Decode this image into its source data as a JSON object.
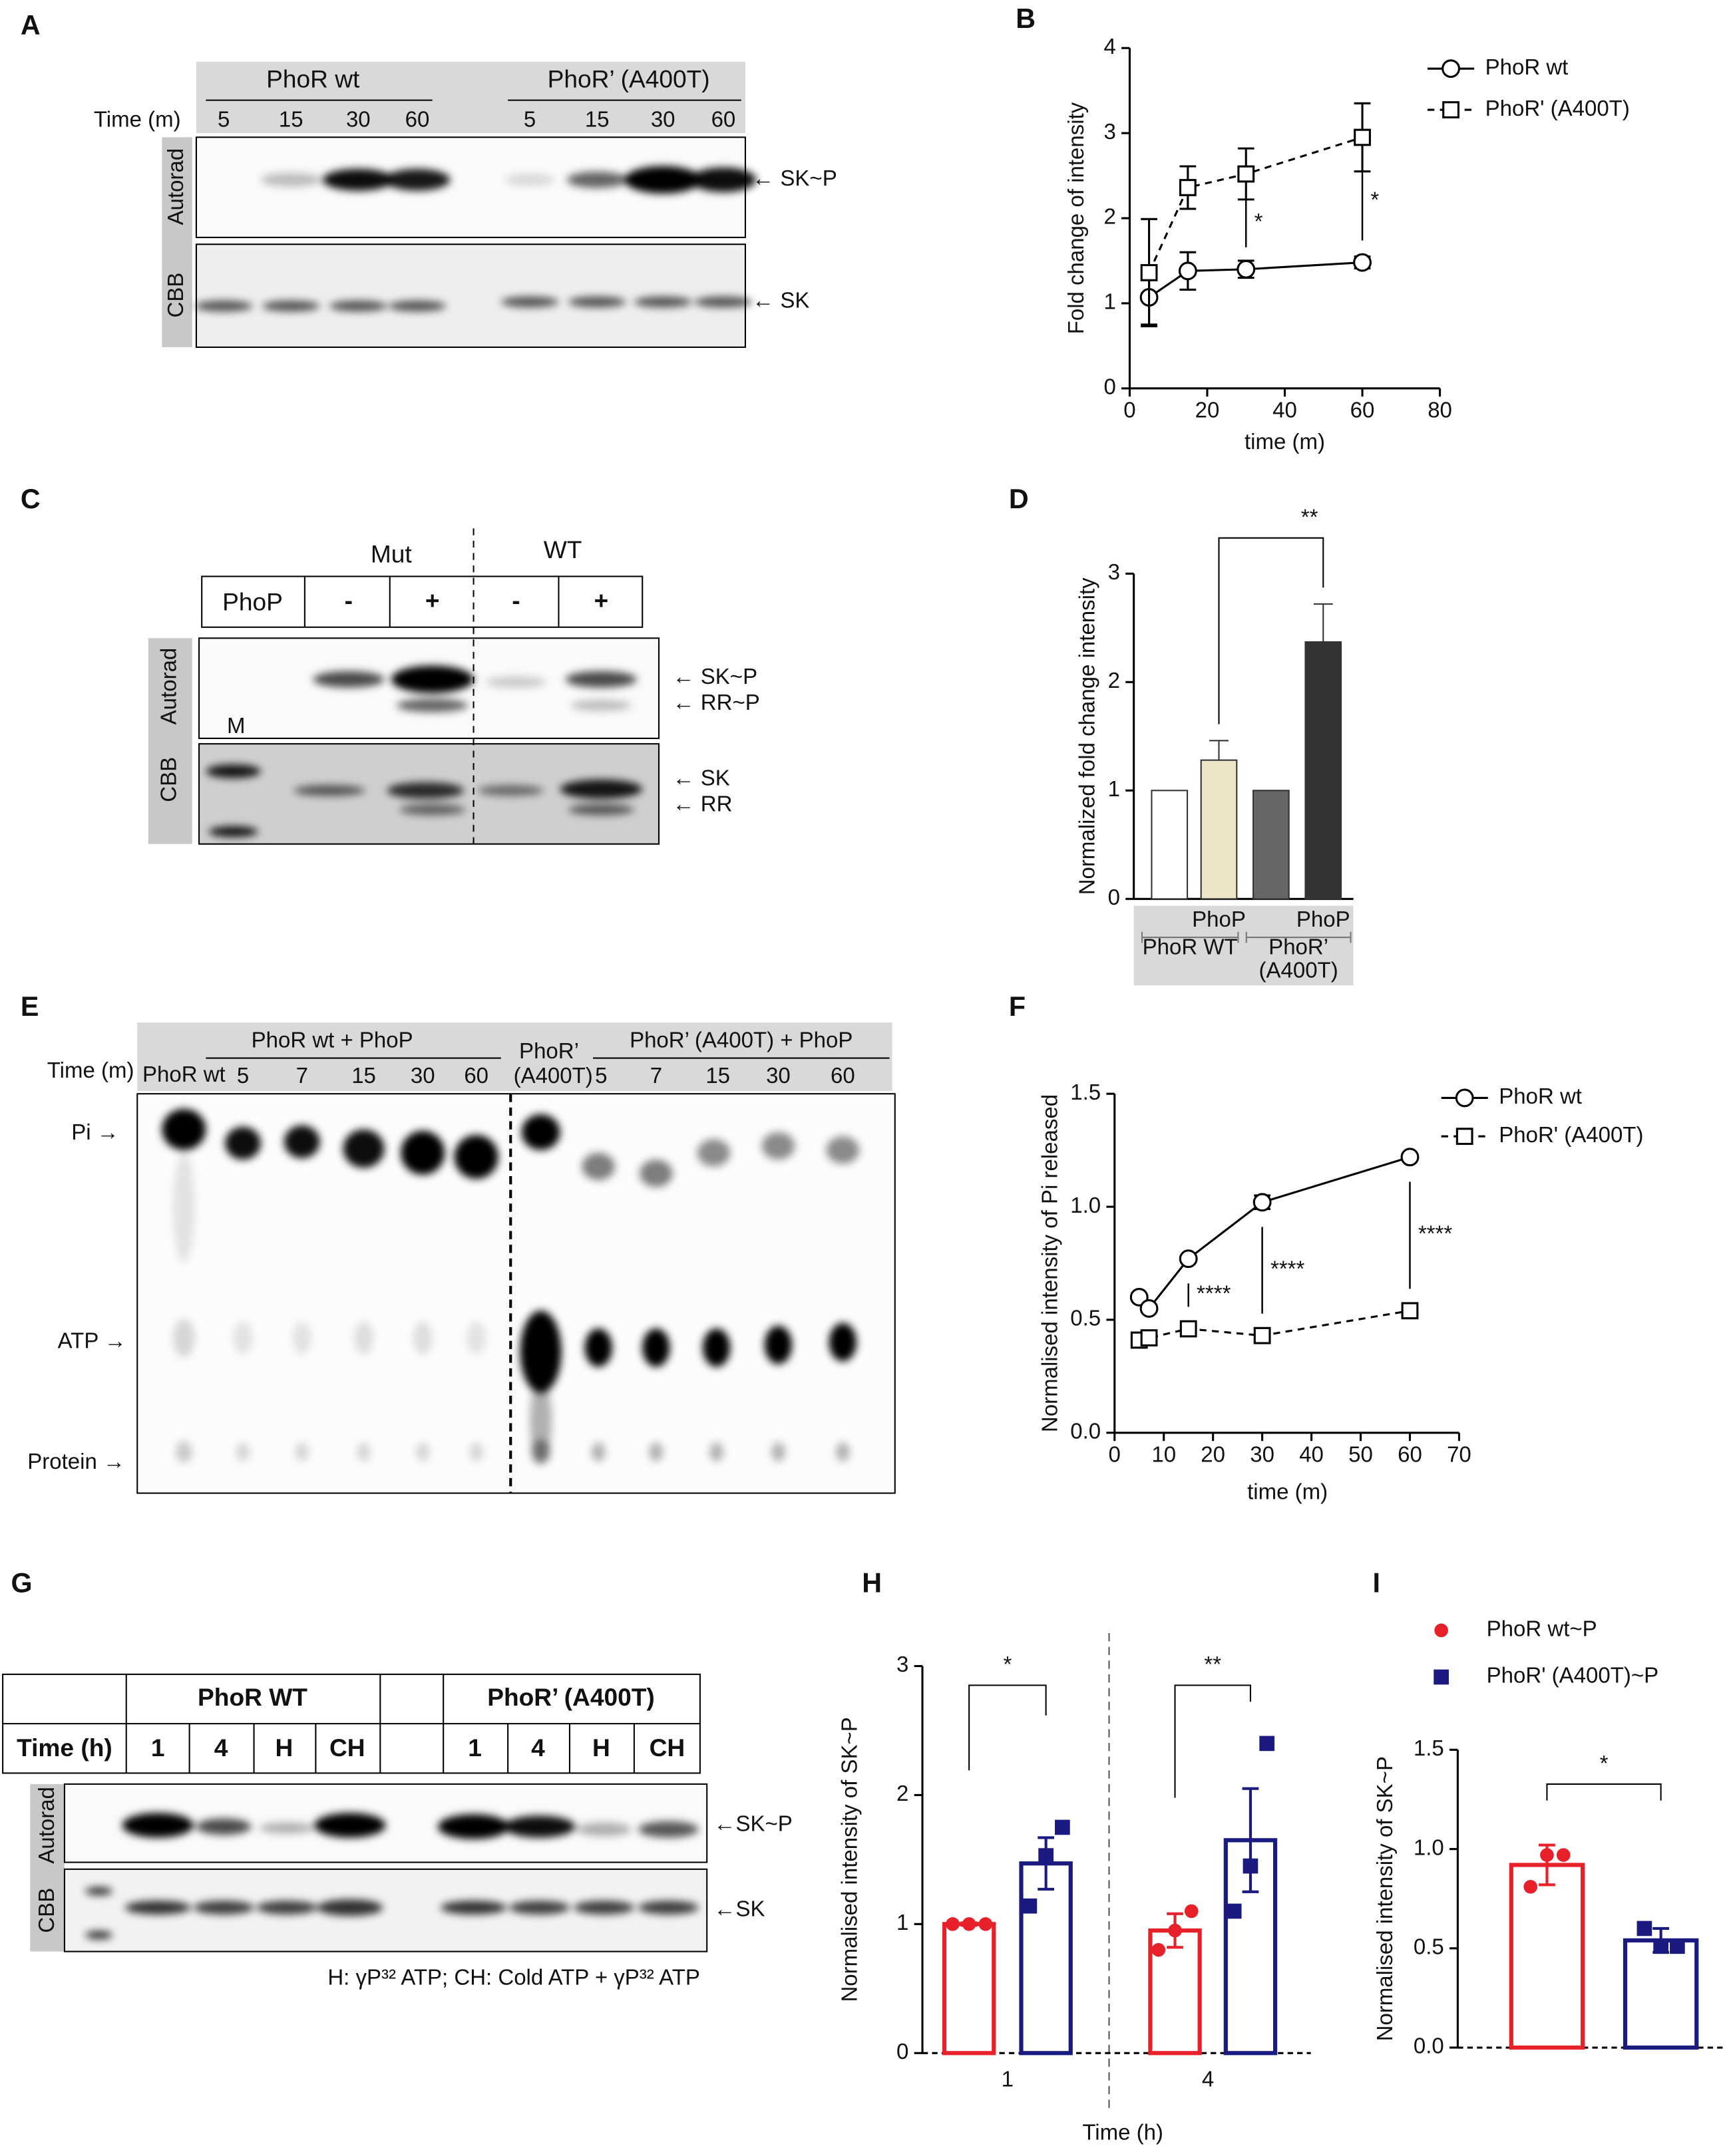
{
  "panel_labels": [
    "A",
    "B",
    "C",
    "D",
    "E",
    "F",
    "G",
    "H",
    "I"
  ],
  "panel_A": {
    "groups": [
      "PhoR  wt",
      "PhoR’ (A400T)"
    ],
    "time_label": "Time (m)",
    "lanes": [
      "5",
      "15",
      "30",
      "60",
      "5",
      "15",
      "30",
      "60"
    ],
    "rows": [
      "Autorad",
      "CBB"
    ],
    "markers": [
      "← SK~P",
      "← SK"
    ]
  },
  "panel_C": {
    "groups": [
      "Mut",
      "WT"
    ],
    "row_label": "PhoP",
    "lanes": [
      "-",
      "+",
      "-",
      "+"
    ],
    "rows": [
      "Autorad",
      "CBB"
    ],
    "ladder": "M",
    "markers": [
      "← SK~P",
      "← RR~P",
      "← SK",
      "← RR"
    ]
  },
  "panel_E": {
    "groups": [
      "PhoR wt + PhoP",
      "PhoR’ (A400T) + PhoP"
    ],
    "time_label": "Time (m)",
    "control_lanes": [
      "PhoR wt",
      "PhoR’",
      "(A400T)"
    ],
    "lanes": [
      "5",
      "7",
      "15",
      "30",
      "60",
      "5",
      "7",
      "15",
      "30",
      "60"
    ],
    "spots": [
      "Pi →",
      "ATP →",
      "Protein →"
    ]
  },
  "panel_G": {
    "groups": [
      "PhoR WT",
      "PhoR’ (A400T)"
    ],
    "time_label": "Time (h)",
    "lanes": [
      "1",
      "4",
      "H",
      "CH",
      "1",
      "4",
      "H",
      "CH"
    ],
    "rows": [
      "Autorad",
      "CBB"
    ],
    "markers": [
      "←SK~P",
      "←SK"
    ],
    "caption": "H: γP³² ATP; CH: Cold ATP + γP³² ATP"
  },
  "chart_data": [
    {
      "type": "line",
      "xlabel": "time (m)",
      "ylabel": "Fold change of intensity",
      "x": [
        5,
        15,
        30,
        60
      ],
      "xlim": [
        0,
        80
      ],
      "xticks": [
        0,
        20,
        40,
        60,
        80
      ],
      "ylim": [
        0,
        4
      ],
      "yticks": [
        0,
        1,
        2,
        3,
        4
      ],
      "series": [
        {
          "name": "PhoR wt",
          "color": "#000000",
          "marker": "circle",
          "dashed": false,
          "values": [
            1.07,
            1.38,
            1.4,
            1.48
          ],
          "errors": [
            0.32,
            0.22,
            0.1,
            0.07
          ]
        },
        {
          "name": "PhoR' (A400T)",
          "color": "#000000",
          "marker": "square",
          "dashed": true,
          "values": [
            1.36,
            2.36,
            2.52,
            2.95
          ],
          "errors": [
            0.63,
            0.25,
            0.3,
            0.4
          ]
        }
      ],
      "annotations": [
        {
          "text": "*",
          "x": 30
        },
        {
          "text": "*",
          "x": 60
        }
      ]
    },
    {
      "type": "bar",
      "ylabel": "Normalized fold change intensity",
      "categories": [
        null,
        "PhoP",
        null,
        "PhoP"
      ],
      "values": [
        1,
        1.28,
        1,
        2.37
      ],
      "errors": [
        0,
        0.18,
        0,
        0.35
      ],
      "colors": [
        "#ffffff",
        "#ece5c7",
        "#666666",
        "#333333"
      ],
      "ylim": [
        0,
        3
      ],
      "yticks": [
        0,
        1,
        2,
        3
      ],
      "groups": [
        [
          "PhoR WT"
        ],
        [
          "PhoR’",
          "(A400T)"
        ]
      ],
      "annotations": [
        {
          "text": "**"
        }
      ]
    },
    {
      "type": "line",
      "xlabel": "time (m)",
      "ylabel": "Normalised intensity of Pi released",
      "x": [
        5,
        7,
        15,
        30,
        60
      ],
      "xlim": [
        0,
        70
      ],
      "xticks": [
        0,
        10,
        20,
        30,
        40,
        50,
        60,
        70
      ],
      "ylim": [
        0,
        1.5
      ],
      "yticks": [
        {
          "value": 0,
          "label": "0.0"
        },
        {
          "value": 0.5,
          "label": "0.5"
        },
        {
          "value": 1,
          "label": "1.0"
        },
        {
          "value": 1.5,
          "label": "1.5"
        }
      ],
      "series": [
        {
          "name": "PhoR wt",
          "color": "#000000",
          "marker": "circle",
          "dashed": false,
          "values": [
            0.6,
            0.55,
            0.77,
            1.02,
            1.22
          ],
          "errors": [
            0.01,
            0.01,
            0.01,
            0.03,
            0.01
          ]
        },
        {
          "name": "PhoR' (A400T)",
          "color": "#000000",
          "marker": "square",
          "dashed": true,
          "values": [
            0.41,
            0.42,
            0.46,
            0.43,
            0.54
          ],
          "errors": [
            0.01,
            0.01,
            0.01,
            0.01,
            0.01
          ]
        }
      ],
      "annotations": [
        {
          "text": "****",
          "x": 15
        },
        {
          "text": "****",
          "x": 30
        },
        {
          "text": "****",
          "x": 60
        }
      ]
    },
    {
      "type": "bar_points",
      "xlabel": "Time (h)",
      "ylabel": "Normalised intensity of SK~P",
      "categories": [
        "1",
        "4"
      ],
      "ylim": [
        0,
        3
      ],
      "yticks": [
        0,
        1,
        2,
        3
      ],
      "series": [
        {
          "color": "#e8202a",
          "values": [
            1.0,
            0.95
          ],
          "errors": [
            0.01,
            0.13
          ],
          "points": [
            [
              1,
              1,
              1
            ],
            [
              0.8,
              0.95,
              1.1
            ]
          ]
        },
        {
          "color": "#1a1a80",
          "values": [
            1.47,
            1.65
          ],
          "errors": [
            0.2,
            0.4
          ],
          "points": [
            [
              1.14,
              1.53,
              1.75
            ],
            [
              1.1,
              1.45,
              2.4
            ]
          ]
        }
      ],
      "annotations": [
        {
          "text": "*"
        },
        {
          "text": "**"
        }
      ]
    },
    {
      "type": "bar_points",
      "ylabel": "Normalised intensity of SK~P",
      "ylim": [
        0,
        1.5
      ],
      "yticks": [
        {
          "value": 0,
          "label": "0.0"
        },
        {
          "value": 0.5,
          "label": "0.5"
        },
        {
          "value": 1,
          "label": "1.0"
        },
        {
          "value": 1.5,
          "label": "1.5"
        }
      ],
      "series": [
        {
          "name": "PhoR wt~P",
          "color": "#e8202a",
          "values": [
            0.92
          ],
          "errors": [
            0.1
          ],
          "points": [
            [
              0.81,
              0.97,
              0.97
            ]
          ]
        },
        {
          "name": "PhoR' (A400T)~P",
          "color": "#1a1a80",
          "values": [
            0.54
          ],
          "errors": [
            0.06
          ],
          "points": [
            [
              0.6,
              0.51,
              0.51
            ]
          ]
        }
      ],
      "annotations": [
        {
          "text": "*"
        }
      ]
    }
  ]
}
